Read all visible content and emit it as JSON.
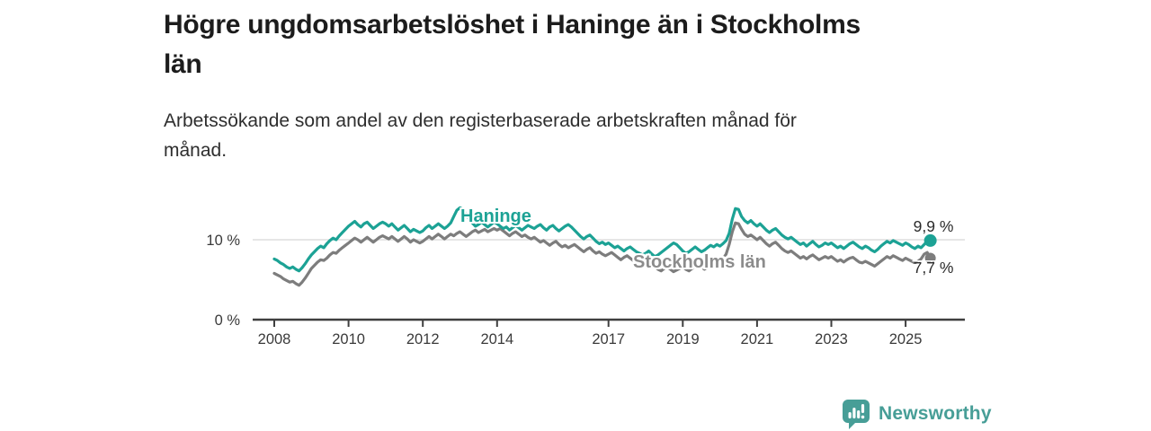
{
  "title": {
    "line1": "Högre ungdomsarbetslöshet i Haninge än i Stockholms",
    "line2": "län"
  },
  "subtitle": {
    "line1": "Arbetssökande som andel av den registerbaserade arbetskraften månad för",
    "line2": "månad."
  },
  "colors": {
    "accent_teal": "#1ca295",
    "line_gray": "#7d7d7d",
    "label_gray": "#8c8c8c",
    "brand_teal": "#479e97",
    "grid": "#d6d6d6",
    "axis": "#3f3f3f",
    "tick_text": "#3a3a3a"
  },
  "chart_data": {
    "type": "line",
    "x_start_year": 2008,
    "x_interval_months": 1,
    "x_tick_years": [
      2008,
      2010,
      2012,
      2014,
      2017,
      2019,
      2021,
      2023,
      2025
    ],
    "y_axis": {
      "ticks": [
        {
          "value": 10,
          "label": "10 %"
        },
        {
          "value": 0,
          "label": "0 %"
        }
      ],
      "unit": "%"
    },
    "grid": "single-horizontal-line-at-10",
    "legend_position": "inline-labels-on-lines",
    "series": [
      {
        "name": "Haninge",
        "color": "#1ca295",
        "end_label": "9,9 %",
        "end_value": 9.9,
        "values": [
          7.6,
          7.4,
          7.1,
          6.9,
          6.6,
          6.4,
          6.6,
          6.3,
          6.1,
          6.5,
          7.0,
          7.6,
          8.1,
          8.5,
          8.9,
          9.2,
          9.0,
          9.5,
          9.9,
          10.2,
          10.0,
          10.5,
          10.9,
          11.3,
          11.7,
          12.0,
          12.3,
          11.9,
          11.6,
          12.0,
          12.2,
          11.8,
          11.4,
          11.7,
          12.0,
          12.2,
          12.0,
          11.7,
          12.0,
          11.6,
          11.2,
          11.5,
          11.8,
          11.4,
          11.0,
          11.3,
          11.1,
          10.9,
          11.1,
          11.5,
          11.8,
          11.4,
          11.7,
          12.0,
          11.7,
          11.4,
          11.7,
          12.1,
          12.9,
          13.7,
          14.0,
          13.8,
          13.2,
          12.6,
          12.1,
          11.7,
          11.9,
          12.2,
          11.9,
          11.6,
          11.9,
          12.2,
          12.0,
          11.7,
          11.4,
          11.6,
          11.2,
          11.5,
          11.8,
          11.5,
          11.2,
          11.5,
          11.8,
          11.6,
          11.4,
          11.7,
          11.9,
          11.5,
          11.2,
          11.6,
          11.8,
          11.4,
          11.1,
          11.4,
          11.7,
          11.9,
          11.6,
          11.2,
          10.8,
          10.4,
          10.1,
          10.4,
          10.6,
          10.2,
          9.8,
          9.5,
          9.7,
          9.4,
          9.6,
          9.3,
          9.0,
          9.2,
          8.9,
          8.6,
          8.9,
          9.1,
          8.8,
          8.5,
          8.3,
          8.1,
          8.3,
          8.6,
          8.2,
          7.9,
          8.1,
          8.4,
          8.7,
          9.0,
          9.3,
          9.6,
          9.4,
          9.0,
          8.6,
          8.3,
          8.5,
          8.8,
          9.1,
          8.8,
          8.5,
          8.7,
          9.0,
          9.3,
          9.1,
          9.4,
          9.2,
          9.5,
          9.9,
          10.8,
          12.6,
          13.9,
          13.8,
          12.9,
          12.4,
          12.1,
          12.4,
          12.0,
          11.7,
          12.0,
          11.6,
          11.2,
          10.9,
          11.2,
          11.4,
          11.0,
          10.6,
          10.3,
          10.1,
          10.3,
          10.0,
          9.7,
          9.4,
          9.6,
          9.2,
          9.5,
          9.8,
          9.4,
          9.1,
          9.3,
          9.6,
          9.4,
          9.6,
          9.3,
          9.0,
          9.2,
          8.9,
          9.2,
          9.5,
          9.7,
          9.4,
          9.1,
          8.9,
          9.2,
          9.0,
          8.7,
          8.5,
          8.8,
          9.2,
          9.5,
          9.8,
          9.6,
          9.9,
          9.7,
          9.5,
          9.3,
          9.6,
          9.4,
          9.1,
          8.9,
          9.2,
          9.0,
          9.4,
          9.8,
          9.9
        ]
      },
      {
        "name": "Stockholms län",
        "color": "#7d7d7d",
        "end_label": "7,7 %",
        "end_value": 7.7,
        "values": [
          5.8,
          5.6,
          5.4,
          5.1,
          4.9,
          4.7,
          4.8,
          4.5,
          4.3,
          4.7,
          5.2,
          5.8,
          6.4,
          6.8,
          7.2,
          7.5,
          7.4,
          7.7,
          8.1,
          8.4,
          8.3,
          8.7,
          9.0,
          9.3,
          9.6,
          9.9,
          10.2,
          10.0,
          9.7,
          10.0,
          10.3,
          10.0,
          9.7,
          10.0,
          10.3,
          10.5,
          10.3,
          10.1,
          10.4,
          10.1,
          9.8,
          10.1,
          10.4,
          10.1,
          9.7,
          10.0,
          9.8,
          9.6,
          9.8,
          10.1,
          10.4,
          10.1,
          10.4,
          10.7,
          10.4,
          10.1,
          10.4,
          10.7,
          10.5,
          10.8,
          11.0,
          10.7,
          10.4,
          10.7,
          11.0,
          11.2,
          10.9,
          11.1,
          11.3,
          11.0,
          11.2,
          11.4,
          11.2,
          11.4,
          11.1,
          10.8,
          10.5,
          10.8,
          11.0,
          10.7,
          10.4,
          10.6,
          10.3,
          10.1,
          10.3,
          10.0,
          9.7,
          9.9,
          9.6,
          9.3,
          9.6,
          9.8,
          9.4,
          9.1,
          9.3,
          9.0,
          9.2,
          9.4,
          9.1,
          8.8,
          8.5,
          8.8,
          9.0,
          8.6,
          8.3,
          8.5,
          8.2,
          8.0,
          8.2,
          8.4,
          8.1,
          7.8,
          7.5,
          7.8,
          8.0,
          7.7,
          7.4,
          7.2,
          7.0,
          6.8,
          7.0,
          7.2,
          6.9,
          6.6,
          6.3,
          6.1,
          6.4,
          6.6,
          6.3,
          6.0,
          6.2,
          6.4,
          6.6,
          6.3,
          6.1,
          6.4,
          6.6,
          6.9,
          6.6,
          6.3,
          6.6,
          6.9,
          7.1,
          7.4,
          7.3,
          7.6,
          8.2,
          9.4,
          11.0,
          12.1,
          12.0,
          11.3,
          10.7,
          10.4,
          10.6,
          10.3,
          10.0,
          10.3,
          9.9,
          9.5,
          9.2,
          9.5,
          9.7,
          9.3,
          8.9,
          8.6,
          8.4,
          8.6,
          8.3,
          8.0,
          7.7,
          7.9,
          7.6,
          7.9,
          8.1,
          7.8,
          7.5,
          7.7,
          7.9,
          7.7,
          7.9,
          7.6,
          7.3,
          7.5,
          7.2,
          7.5,
          7.7,
          7.8,
          7.5,
          7.2,
          7.1,
          7.3,
          7.1,
          6.9,
          6.7,
          7.0,
          7.3,
          7.6,
          7.9,
          7.7,
          8.0,
          7.8,
          7.6,
          7.4,
          7.7,
          7.5,
          7.3,
          7.1,
          7.3,
          7.6,
          8.2,
          8.4,
          7.7
        ]
      }
    ]
  },
  "footer": {
    "brand": "Newsworthy"
  }
}
